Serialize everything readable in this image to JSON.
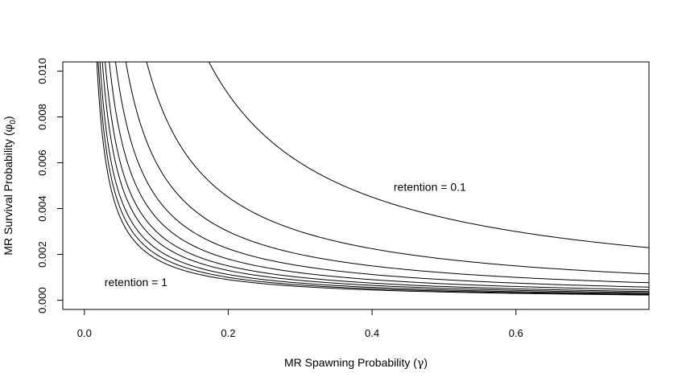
{
  "chart_data": {
    "type": "line",
    "title": "",
    "xlabel": "MR Spawning Probability",
    "xlabel_symbol": "γ",
    "ylabel": "MR Survival Probability",
    "ylabel_symbol": "φ",
    "ylabel_subscript": "0",
    "xlim": [
      -0.03,
      0.785
    ],
    "ylim": [
      -0.0004,
      0.0104
    ],
    "x_ticks": [
      0.0,
      0.2,
      0.4,
      0.6
    ],
    "x_tick_labels": [
      "0.0",
      "0.2",
      "0.4",
      "0.6"
    ],
    "y_ticks": [
      0.0,
      0.002,
      0.004,
      0.006,
      0.008,
      0.01
    ],
    "y_tick_labels": [
      "0.000",
      "0.002",
      "0.004",
      "0.006",
      "0.008",
      "0.010"
    ],
    "grid": false,
    "legend": "none",
    "series_form": "inverse",
    "series_form_note": "each curve follows y = k / x",
    "series": [
      {
        "k": 0.00018
      },
      {
        "k": 0.0002
      },
      {
        "k": 0.000225
      },
      {
        "k": 0.00026
      },
      {
        "k": 0.0003
      },
      {
        "k": 0.00036
      },
      {
        "k": 0.00045
      },
      {
        "k": 0.0006
      },
      {
        "k": 0.0009
      },
      {
        "k": 0.0018
      }
    ],
    "annotations": [
      {
        "text": "retention = 0.1",
        "x": 0.43,
        "y": 0.0049
      },
      {
        "text": "retention = 1",
        "x": 0.028,
        "y": 0.00075
      }
    ]
  }
}
